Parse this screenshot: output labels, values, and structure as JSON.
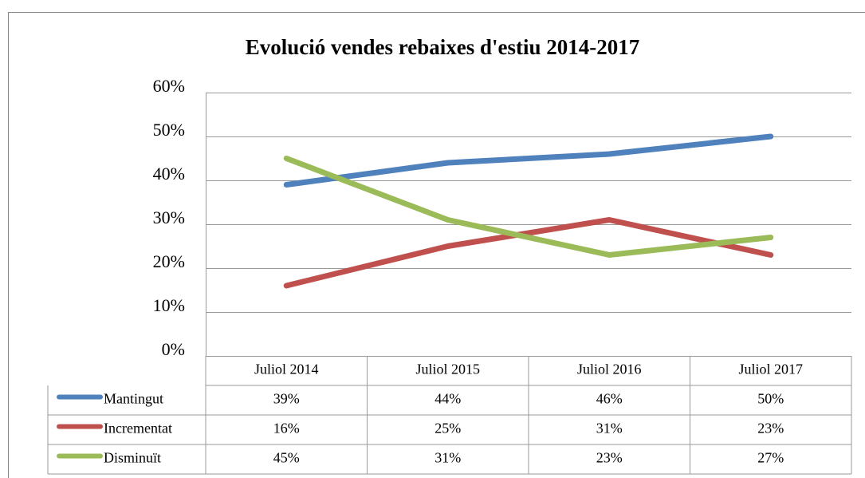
{
  "chart_data": {
    "type": "line",
    "title": "Evolució vendes rebaixes d'estiu 2014-2017",
    "categories": [
      "Juliol 2014",
      "Juliol 2015",
      "Juliol 2016",
      "Juliol 2017"
    ],
    "series": [
      {
        "name": "Mantingut",
        "color": "#4f81bd",
        "values": [
          39,
          44,
          46,
          50
        ],
        "value_labels": [
          "39%",
          "44%",
          "46%",
          "50%"
        ]
      },
      {
        "name": "Incrementat",
        "color": "#c0504d",
        "values": [
          16,
          25,
          31,
          23
        ],
        "value_labels": [
          "16%",
          "25%",
          "31%",
          "23%"
        ]
      },
      {
        "name": "Disminuït",
        "color": "#9bbb59",
        "values": [
          45,
          31,
          23,
          27
        ],
        "value_labels": [
          "45%",
          "31%",
          "23%",
          "27%"
        ]
      }
    ],
    "ylim": [
      0,
      60
    ],
    "yticks": [
      {
        "value": 0,
        "label": "0%"
      },
      {
        "value": 10,
        "label": "10%"
      },
      {
        "value": 20,
        "label": "20%"
      },
      {
        "value": 30,
        "label": "30%"
      },
      {
        "value": 40,
        "label": "40%"
      },
      {
        "value": 50,
        "label": "50%"
      },
      {
        "value": 60,
        "label": "60%"
      }
    ],
    "grid": true
  }
}
